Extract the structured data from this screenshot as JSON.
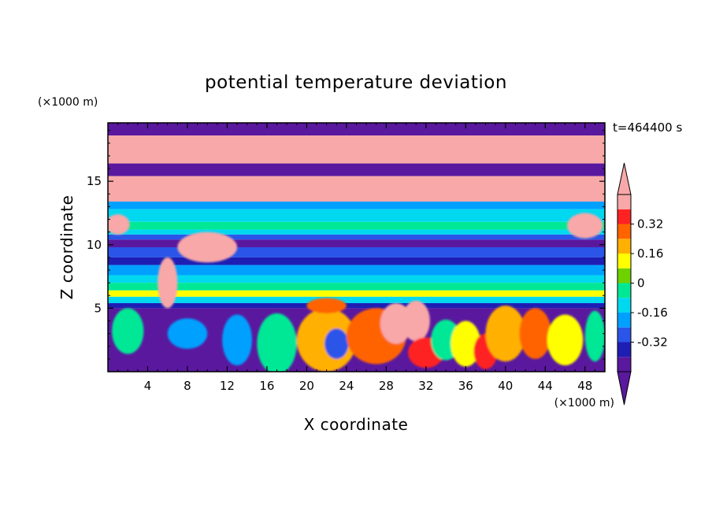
{
  "chart_data": {
    "type": "heatmap",
    "title": "potential temperature deviation",
    "time_label": "t=464400 s",
    "xlabel": "X coordinate",
    "ylabel": "Z coordinate",
    "x_unit": "(×1000 m)",
    "y_unit": "(×1000 m)",
    "xlim": [
      0,
      50
    ],
    "ylim": [
      0,
      19.6
    ],
    "x_ticks": [
      4,
      8,
      12,
      16,
      20,
      24,
      28,
      32,
      36,
      40,
      44,
      48
    ],
    "y_ticks": [
      5,
      10,
      15
    ],
    "colorbar": {
      "levels": [
        -0.48,
        -0.4,
        -0.32,
        -0.24,
        -0.16,
        -0.08,
        0,
        0.08,
        0.16,
        0.24,
        0.32,
        0.4
      ],
      "colors": [
        "#5a189e",
        "#1e1eb4",
        "#2a55e8",
        "#00a0ff",
        "#00d8f0",
        "#00e896",
        "#6ed200",
        "#ffff00",
        "#ffb000",
        "#ff6400",
        "#ff2222",
        "#f8a8a8"
      ],
      "labels": [
        "0.32",
        "0.16",
        "0",
        "-0.16",
        "-0.32"
      ],
      "label_values": [
        0.32,
        0.16,
        0,
        -0.16,
        -0.32
      ],
      "extend": "both"
    },
    "horizontal_bands": [
      {
        "z_min": 18.6,
        "z_max": 19.6,
        "value": -0.44
      },
      {
        "z_min": 16.4,
        "z_max": 18.6,
        "value": 0.44
      },
      {
        "z_min": 15.4,
        "z_max": 16.4,
        "value": -0.44
      },
      {
        "z_min": 13.4,
        "z_max": 15.4,
        "value": 0.44
      },
      {
        "z_min": 12.8,
        "z_max": 13.4,
        "value": -0.2
      },
      {
        "z_min": 11.8,
        "z_max": 12.8,
        "value": -0.12
      },
      {
        "z_min": 11.2,
        "z_max": 11.8,
        "value": -0.04
      },
      {
        "z_min": 10.8,
        "z_max": 11.2,
        "value": -0.12
      },
      {
        "z_min": 10.4,
        "z_max": 10.8,
        "value": -0.28
      },
      {
        "z_min": 9.8,
        "z_max": 10.4,
        "value": -0.44
      },
      {
        "z_min": 9.0,
        "z_max": 9.8,
        "value": -0.28
      },
      {
        "z_min": 8.4,
        "z_max": 9.0,
        "value": -0.36
      },
      {
        "z_min": 7.6,
        "z_max": 8.4,
        "value": -0.2
      },
      {
        "z_min": 7.0,
        "z_max": 7.6,
        "value": -0.12
      },
      {
        "z_min": 6.4,
        "z_max": 7.0,
        "value": -0.04
      },
      {
        "z_min": 5.9,
        "z_max": 6.4,
        "value": 0.12
      },
      {
        "z_min": 5.4,
        "z_max": 5.9,
        "value": -0.12
      },
      {
        "z_min": 5.0,
        "z_max": 5.4,
        "value": -0.36
      },
      {
        "z_min": 0,
        "z_max": 5.0,
        "value": -0.44
      }
    ],
    "features": [
      {
        "x": 2,
        "z": 3.2,
        "value": -0.04,
        "rx": 1.6,
        "rz": 1.8
      },
      {
        "x": 8,
        "z": 3.0,
        "value": -0.2,
        "rx": 2.0,
        "rz": 1.2
      },
      {
        "x": 13,
        "z": 2.5,
        "value": -0.2,
        "rx": 1.5,
        "rz": 2.0
      },
      {
        "x": 17,
        "z": 2.2,
        "value": -0.04,
        "rx": 2.0,
        "rz": 2.4
      },
      {
        "x": 22,
        "z": 2.5,
        "value": 0.2,
        "rx": 3.0,
        "rz": 2.5
      },
      {
        "x": 23,
        "z": 2.2,
        "value": -0.28,
        "rx": 1.2,
        "rz": 1.2
      },
      {
        "x": 27,
        "z": 2.8,
        "value": 0.28,
        "rx": 3.0,
        "rz": 2.2
      },
      {
        "x": 29,
        "z": 3.8,
        "value": 0.44,
        "rx": 1.6,
        "rz": 1.6
      },
      {
        "x": 31,
        "z": 4.0,
        "value": 0.44,
        "rx": 1.4,
        "rz": 1.6
      },
      {
        "x": 32,
        "z": 1.5,
        "value": 0.36,
        "rx": 1.8,
        "rz": 1.2
      },
      {
        "x": 34,
        "z": 2.5,
        "value": -0.04,
        "rx": 1.5,
        "rz": 1.6
      },
      {
        "x": 36,
        "z": 2.2,
        "value": 0.12,
        "rx": 1.5,
        "rz": 1.8
      },
      {
        "x": 38,
        "z": 1.6,
        "value": 0.36,
        "rx": 1.2,
        "rz": 1.4
      },
      {
        "x": 40,
        "z": 3.0,
        "value": 0.2,
        "rx": 2.0,
        "rz": 2.2
      },
      {
        "x": 43,
        "z": 3.0,
        "value": 0.28,
        "rx": 1.6,
        "rz": 2.0
      },
      {
        "x": 46,
        "z": 2.5,
        "value": 0.12,
        "rx": 1.8,
        "rz": 2.0
      },
      {
        "x": 49,
        "z": 2.8,
        "value": -0.04,
        "rx": 1.0,
        "rz": 2.0
      },
      {
        "x": 22,
        "z": 5.2,
        "value": 0.28,
        "rx": 2.0,
        "rz": 0.6
      },
      {
        "x": 10,
        "z": 9.8,
        "value": 0.44,
        "rx": 3.0,
        "rz": 1.2
      },
      {
        "x": 6,
        "z": 7.0,
        "value": 0.44,
        "rx": 1.0,
        "rz": 2.0
      },
      {
        "x": 48,
        "z": 11.5,
        "value": 0.44,
        "rx": 1.8,
        "rz": 1.0
      },
      {
        "x": 1,
        "z": 11.6,
        "value": 0.44,
        "rx": 1.2,
        "rz": 0.8
      }
    ]
  }
}
